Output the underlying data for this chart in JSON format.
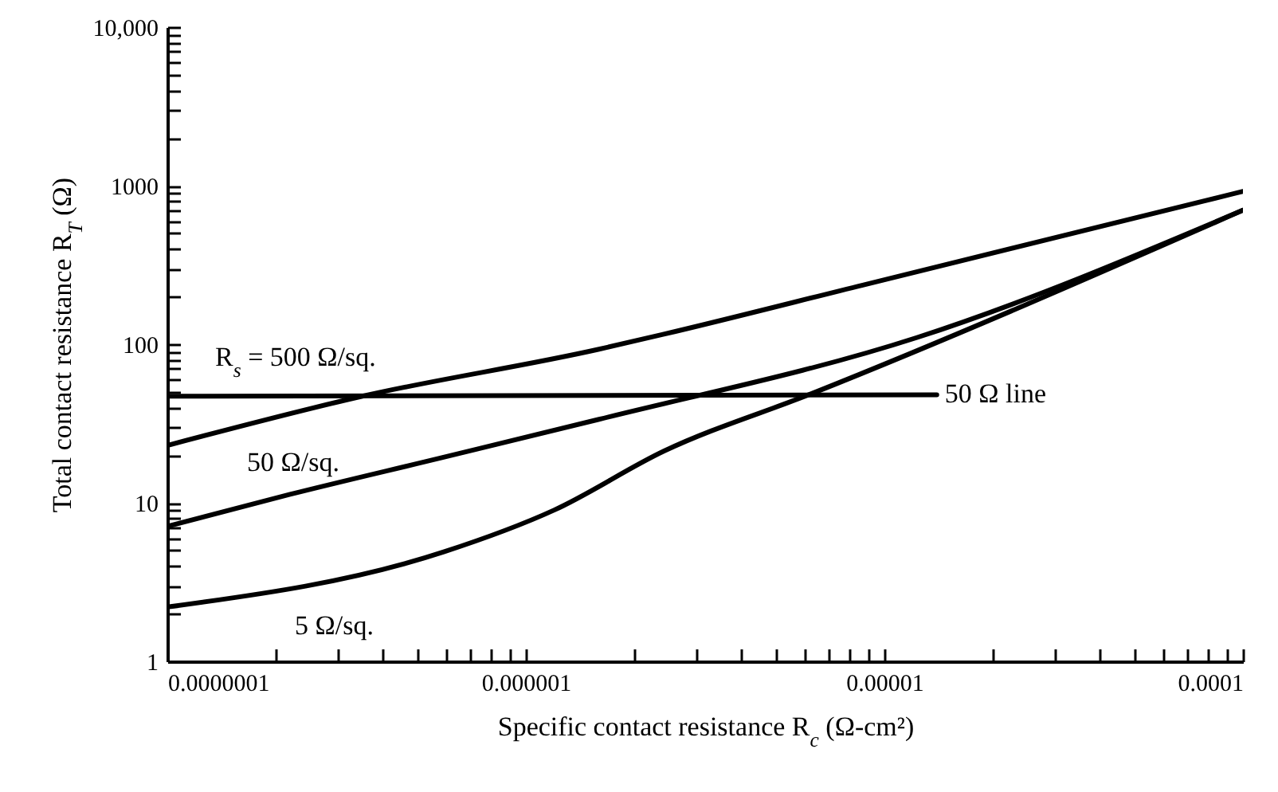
{
  "chart_data": {
    "type": "line",
    "xlabel": "Specific contact resistance R$_{c}$ (Ω-cm²)",
    "ylabel": "Total contact resistance R$_{T}$ (Ω)",
    "log": "xy",
    "grid": false,
    "line_style": "solid",
    "marker": "none",
    "xlim": [
      1e-07,
      0.0001
    ],
    "ylim": [
      1,
      10000
    ],
    "xticks": [
      {
        "value": 1e-07,
        "label": "0.0000001"
      },
      {
        "value": 2e-07,
        "label": null
      },
      {
        "value": 3e-07,
        "label": null
      },
      {
        "value": 4e-07,
        "label": null
      },
      {
        "value": 5e-07,
        "label": null
      },
      {
        "value": 6e-07,
        "label": null
      },
      {
        "value": 7e-07,
        "label": null
      },
      {
        "value": 8e-07,
        "label": null
      },
      {
        "value": 9e-07,
        "label": null
      },
      {
        "value": 1e-06,
        "label": "0.000001"
      },
      {
        "value": 2e-06,
        "label": null
      },
      {
        "value": 3e-06,
        "label": null
      },
      {
        "value": 4e-06,
        "label": null
      },
      {
        "value": 5e-06,
        "label": null
      },
      {
        "value": 6e-06,
        "label": null
      },
      {
        "value": 7e-06,
        "label": null
      },
      {
        "value": 8e-06,
        "label": null
      },
      {
        "value": 9e-06,
        "label": null
      },
      {
        "value": 1e-05,
        "label": "0.00001"
      },
      {
        "value": 2e-05,
        "label": null
      },
      {
        "value": 3e-05,
        "label": null
      },
      {
        "value": 4e-05,
        "label": null
      },
      {
        "value": 5e-05,
        "label": null
      },
      {
        "value": 6e-05,
        "label": null
      },
      {
        "value": 7e-05,
        "label": null
      },
      {
        "value": 8e-05,
        "label": null
      },
      {
        "value": 9e-05,
        "label": null
      },
      {
        "value": 0.0001,
        "label": "0.0001"
      }
    ],
    "yticks": [
      1,
      {
        "value": 2,
        "label": null
      },
      {
        "value": 3,
        "label": null
      },
      {
        "value": 4,
        "label": null
      },
      {
        "value": 5,
        "label": null
      },
      {
        "value": 6,
        "label": null
      },
      {
        "value": 7,
        "label": null
      },
      {
        "value": 8,
        "label": null
      },
      {
        "value": 9,
        "label": null
      },
      10,
      {
        "value": 20,
        "label": null
      },
      {
        "value": 30,
        "label": null
      },
      {
        "value": 40,
        "label": null
      },
      {
        "value": 50,
        "label": null
      },
      {
        "value": 60,
        "label": null
      },
      {
        "value": 70,
        "label": null
      },
      {
        "value": 80,
        "label": null
      },
      {
        "value": 90,
        "label": null
      },
      100,
      {
        "value": 200,
        "label": null
      },
      {
        "value": 300,
        "label": null
      },
      {
        "value": 400,
        "label": null
      },
      {
        "value": 500,
        "label": null
      },
      {
        "value": 600,
        "label": null
      },
      {
        "value": 700,
        "label": null
      },
      {
        "value": 800,
        "label": null
      },
      {
        "value": 900,
        "label": null
      },
      1000,
      {
        "value": 2000,
        "label": null
      },
      {
        "value": 3000,
        "label": null
      },
      {
        "value": 4000,
        "label": null
      },
      {
        "value": 5000,
        "label": null
      },
      {
        "value": 6000,
        "label": null
      },
      {
        "value": 7000,
        "label": null
      },
      {
        "value": 8000,
        "label": null
      },
      {
        "value": 9000,
        "label": null
      },
      {
        "value": 10000,
        "label": "10,000"
      }
    ],
    "series": [
      {
        "name": "R$_{s}$ = 500 Ω/sq.",
        "color": "#000000",
        "x": [
          1e-07,
          3.5e-07,
          1.6e-06,
          2.4e-06,
          8.7e-06,
          0.0001
        ],
        "values": [
          23,
          47,
          93,
          115,
          236,
          920
        ]
      },
      {
        "name": "50 Ω/sq.",
        "color": "#000000",
        "x": [
          1e-07,
          2.2e-07,
          5.8e-07,
          1.6e-06,
          1.23e-05,
          0.0001
        ],
        "values": [
          7.1,
          11.3,
          19.2,
          33.6,
          110,
          700
        ]
      },
      {
        "name": "5 Ω/sq.",
        "color": "#000000",
        "x": [
          1e-07,
          5.9e-07,
          1.2e-06,
          2.43e-06,
          6.3e-06,
          0.0001
        ],
        "values": [
          2.2,
          4.9,
          9.0,
          21.2,
          49,
          700
        ]
      },
      {
        "name": "50 Ω line",
        "color": "#000000",
        "x": [
          1e-07,
          1.4e-05
        ],
        "values": [
          47,
          48
        ]
      }
    ]
  }
}
